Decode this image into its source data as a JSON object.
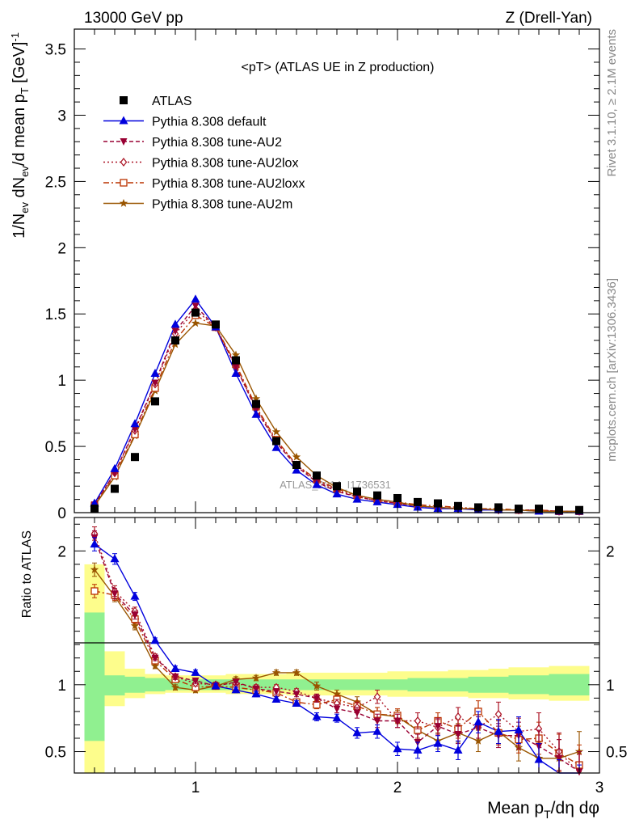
{
  "header": {
    "left": "13000 GeV pp",
    "right": "Z (Drell-Yan)"
  },
  "side_labels": {
    "rivet": "Rivet 3.1.10, ≥ 2.1M events",
    "mcplots": "mcplots.cern.ch [arXiv:1306.3436]"
  },
  "colors": {
    "atlas": "#000000",
    "default": "#0000dd",
    "au2": "#990033",
    "au2lox": "#aa1122",
    "au2loxx": "#bb3300",
    "au2m": "#995500",
    "band_inner": "#90f090",
    "band_outer": "#fdfd8c"
  },
  "chart_data": [
    {
      "type": "scatter",
      "title": "<pT> (ATLAS UE in Z production)",
      "xlabel": "Mean p_T/dη dφ",
      "ylabel": "1/N_ev dN_ev/d mean p_T [GeV]^-1",
      "xlim": [
        0.4,
        3.0
      ],
      "ylim": [
        0,
        3.65
      ],
      "xticks": [
        "1",
        "2",
        "3"
      ],
      "yticks": [
        "0",
        "0.5",
        "1",
        "1.5",
        "2",
        "2.5",
        "3",
        "3.5"
      ],
      "watermark": "ATLAS_2014_I1736531",
      "legend_position": "top-left",
      "x": [
        0.5,
        0.6,
        0.7,
        0.8,
        0.9,
        1.0,
        1.1,
        1.2,
        1.3,
        1.4,
        1.5,
        1.6,
        1.7,
        1.8,
        1.9,
        2.0,
        2.1,
        2.2,
        2.3,
        2.4,
        2.5,
        2.6,
        2.7,
        2.8,
        2.9
      ],
      "series": [
        {
          "name": "ATLAS",
          "key": "atlas",
          "marker": "square",
          "values": [
            0.03,
            0.18,
            0.42,
            0.84,
            1.3,
            1.51,
            1.42,
            1.15,
            0.82,
            0.54,
            0.36,
            0.28,
            0.2,
            0.16,
            0.13,
            0.11,
            0.08,
            0.07,
            0.05,
            0.04,
            0.04,
            0.03,
            0.03,
            0.02,
            0.02
          ]
        },
        {
          "name": "Pythia 8.308 default",
          "key": "default",
          "marker": "triangle-up",
          "line": "solid",
          "values": [
            0.07,
            0.33,
            0.67,
            1.05,
            1.42,
            1.61,
            1.4,
            1.05,
            0.74,
            0.49,
            0.32,
            0.21,
            0.14,
            0.1,
            0.08,
            0.06,
            0.04,
            0.03,
            0.03,
            0.02,
            0.02,
            0.02,
            0.01,
            0.01,
            0.01
          ]
        },
        {
          "name": "Pythia 8.308 tune-AU2",
          "key": "au2",
          "marker": "triangle-down",
          "line": "dashed",
          "values": [
            0.06,
            0.3,
            0.63,
            0.98,
            1.37,
            1.56,
            1.4,
            1.1,
            0.78,
            0.53,
            0.35,
            0.23,
            0.16,
            0.12,
            0.09,
            0.07,
            0.05,
            0.04,
            0.03,
            0.03,
            0.02,
            0.02,
            0.02,
            0.01,
            0.01
          ]
        },
        {
          "name": "Pythia 8.308 tune-AU2lox",
          "key": "au2lox",
          "marker": "diamond",
          "line": "dotted",
          "values": [
            0.06,
            0.3,
            0.62,
            0.97,
            1.35,
            1.53,
            1.4,
            1.1,
            0.79,
            0.54,
            0.36,
            0.24,
            0.17,
            0.12,
            0.09,
            0.07,
            0.05,
            0.04,
            0.03,
            0.03,
            0.02,
            0.02,
            0.02,
            0.01,
            0.01
          ]
        },
        {
          "name": "Pythia 8.308 tune-AU2loxx",
          "key": "au2loxx",
          "marker": "open-square",
          "line": "dashdot",
          "values": [
            0.05,
            0.28,
            0.59,
            0.94,
            1.3,
            1.49,
            1.4,
            1.12,
            0.8,
            0.55,
            0.36,
            0.25,
            0.18,
            0.13,
            0.1,
            0.08,
            0.06,
            0.05,
            0.04,
            0.03,
            0.03,
            0.02,
            0.02,
            0.01,
            0.01
          ]
        },
        {
          "name": "Pythia 8.308 tune-AU2m",
          "key": "au2m",
          "marker": "star",
          "line": "solid",
          "values": [
            0.05,
            0.27,
            0.58,
            0.92,
            1.27,
            1.43,
            1.41,
            1.19,
            0.86,
            0.61,
            0.42,
            0.28,
            0.19,
            0.13,
            0.1,
            0.08,
            0.05,
            0.04,
            0.03,
            0.03,
            0.02,
            0.02,
            0.01,
            0.01,
            0.01
          ]
        }
      ]
    },
    {
      "type": "scatter",
      "ylabel": "Ratio to ATLAS",
      "xlabel": "Mean p_T/dη dφ",
      "xlim": [
        0.4,
        3.0
      ],
      "ylim": [
        0.34,
        2.25
      ],
      "xticks": [
        "1",
        "2",
        "3"
      ],
      "yticks": [
        "0.5",
        "1",
        "2"
      ],
      "x": [
        0.5,
        0.6,
        0.7,
        0.8,
        0.9,
        1.0,
        1.1,
        1.2,
        1.3,
        1.4,
        1.5,
        1.6,
        1.7,
        1.8,
        1.9,
        2.0,
        2.1,
        2.2,
        2.3,
        2.4,
        2.5,
        2.6,
        2.7,
        2.8,
        2.9
      ],
      "band_inner": [
        [
          0.58,
          1.54
        ],
        [
          0.92,
          1.07
        ],
        [
          0.94,
          1.06
        ],
        [
          0.95,
          1.05
        ],
        [
          0.96,
          1.04
        ],
        [
          0.96,
          1.04
        ],
        [
          0.96,
          1.04
        ],
        [
          0.96,
          1.04
        ],
        [
          0.96,
          1.04
        ],
        [
          0.96,
          1.04
        ],
        [
          0.96,
          1.04
        ],
        [
          0.96,
          1.04
        ],
        [
          0.96,
          1.04
        ],
        [
          0.96,
          1.04
        ],
        [
          0.96,
          1.04
        ],
        [
          0.96,
          1.04
        ],
        [
          0.95,
          1.05
        ],
        [
          0.95,
          1.05
        ],
        [
          0.95,
          1.05
        ],
        [
          0.94,
          1.06
        ],
        [
          0.94,
          1.06
        ],
        [
          0.93,
          1.07
        ],
        [
          0.93,
          1.07
        ],
        [
          0.92,
          1.08
        ],
        [
          0.92,
          1.08
        ]
      ],
      "band_outer": [
        [
          0.3,
          1.9
        ],
        [
          0.84,
          1.25
        ],
        [
          0.9,
          1.12
        ],
        [
          0.93,
          1.08
        ],
        [
          0.94,
          1.07
        ],
        [
          0.94,
          1.07
        ],
        [
          0.94,
          1.07
        ],
        [
          0.93,
          1.08
        ],
        [
          0.93,
          1.08
        ],
        [
          0.93,
          1.08
        ],
        [
          0.92,
          1.09
        ],
        [
          0.92,
          1.09
        ],
        [
          0.92,
          1.09
        ],
        [
          0.92,
          1.09
        ],
        [
          0.92,
          1.09
        ],
        [
          0.91,
          1.1
        ],
        [
          0.91,
          1.1
        ],
        [
          0.91,
          1.1
        ],
        [
          0.91,
          1.11
        ],
        [
          0.9,
          1.11
        ],
        [
          0.9,
          1.12
        ],
        [
          0.89,
          1.13
        ],
        [
          0.89,
          1.13
        ],
        [
          0.88,
          1.14
        ],
        [
          0.88,
          1.14
        ]
      ],
      "series": [
        {
          "name": "Pythia 8.308 default",
          "key": "default",
          "marker": "triangle-up",
          "line": "solid",
          "values": [
            2.05,
            1.94,
            1.66,
            1.33,
            1.12,
            1.09,
            0.99,
            0.96,
            0.93,
            0.89,
            0.86,
            0.76,
            0.75,
            0.64,
            0.65,
            0.52,
            0.51,
            0.56,
            0.51,
            0.72,
            0.65,
            0.66,
            0.44,
            0.3,
            0.25
          ],
          "errors": [
            0.05,
            0.04,
            0.03,
            0.02,
            0.02,
            0.02,
            0.02,
            0.02,
            0.02,
            0.02,
            0.02,
            0.03,
            0.03,
            0.04,
            0.05,
            0.05,
            0.06,
            0.06,
            0.07,
            0.08,
            0.09,
            0.1,
            0.12,
            0.14,
            0.15
          ]
        },
        {
          "name": "Pythia 8.308 tune-AU2",
          "key": "au2",
          "marker": "triangle-down",
          "line": "dashed",
          "values": [
            2.1,
            1.68,
            1.52,
            1.2,
            1.06,
            1.03,
            0.99,
            1.02,
            0.97,
            0.95,
            0.93,
            0.9,
            0.82,
            0.79,
            0.73,
            0.73,
            0.57,
            0.69,
            0.63,
            0.68,
            0.62,
            0.62,
            0.54,
            0.45,
            0.35
          ],
          "errors": [
            0.05,
            0.04,
            0.03,
            0.02,
            0.02,
            0.02,
            0.02,
            0.02,
            0.02,
            0.02,
            0.02,
            0.03,
            0.03,
            0.04,
            0.05,
            0.05,
            0.06,
            0.06,
            0.07,
            0.08,
            0.09,
            0.1,
            0.12,
            0.14,
            0.15
          ]
        },
        {
          "name": "Pythia 8.308 tune-AU2lox",
          "key": "au2lox",
          "marker": "diamond",
          "line": "dotted",
          "values": [
            2.13,
            1.7,
            1.55,
            1.21,
            1.06,
            1.01,
            1.0,
            1.01,
            0.98,
            0.98,
            0.95,
            0.9,
            0.86,
            0.83,
            0.91,
            0.73,
            0.73,
            0.68,
            0.76,
            0.68,
            0.78,
            0.65,
            0.67,
            0.5,
            0.33
          ],
          "errors": [
            0.05,
            0.04,
            0.03,
            0.02,
            0.02,
            0.02,
            0.02,
            0.02,
            0.02,
            0.02,
            0.02,
            0.03,
            0.03,
            0.04,
            0.05,
            0.05,
            0.06,
            0.06,
            0.07,
            0.08,
            0.09,
            0.1,
            0.12,
            0.14,
            0.15
          ]
        },
        {
          "name": "Pythia 8.308 tune-AU2loxx",
          "key": "au2loxx",
          "marker": "open-square",
          "line": "dashdot",
          "values": [
            1.7,
            1.67,
            1.49,
            1.18,
            1.04,
            0.98,
            0.99,
            0.98,
            0.96,
            0.94,
            0.87,
            0.85,
            0.89,
            0.84,
            0.78,
            0.77,
            0.66,
            0.73,
            0.67,
            0.8,
            0.64,
            0.59,
            0.6,
            0.49,
            0.4
          ],
          "errors": [
            0.05,
            0.04,
            0.03,
            0.02,
            0.02,
            0.02,
            0.02,
            0.02,
            0.02,
            0.02,
            0.02,
            0.03,
            0.03,
            0.04,
            0.05,
            0.05,
            0.06,
            0.06,
            0.07,
            0.08,
            0.09,
            0.1,
            0.12,
            0.14,
            0.15
          ]
        },
        {
          "name": "Pythia 8.308 tune-AU2m",
          "key": "au2m",
          "marker": "star",
          "line": "solid",
          "values": [
            1.86,
            1.66,
            1.44,
            1.14,
            0.98,
            0.96,
            0.99,
            1.04,
            1.05,
            1.09,
            1.09,
            0.99,
            0.93,
            0.87,
            0.78,
            0.76,
            0.66,
            0.58,
            0.64,
            0.58,
            0.65,
            0.53,
            0.45,
            0.45,
            0.5
          ],
          "errors": [
            0.05,
            0.04,
            0.03,
            0.02,
            0.02,
            0.02,
            0.02,
            0.02,
            0.02,
            0.02,
            0.02,
            0.03,
            0.03,
            0.04,
            0.05,
            0.05,
            0.06,
            0.06,
            0.07,
            0.08,
            0.09,
            0.1,
            0.12,
            0.14,
            0.15
          ]
        }
      ]
    }
  ]
}
